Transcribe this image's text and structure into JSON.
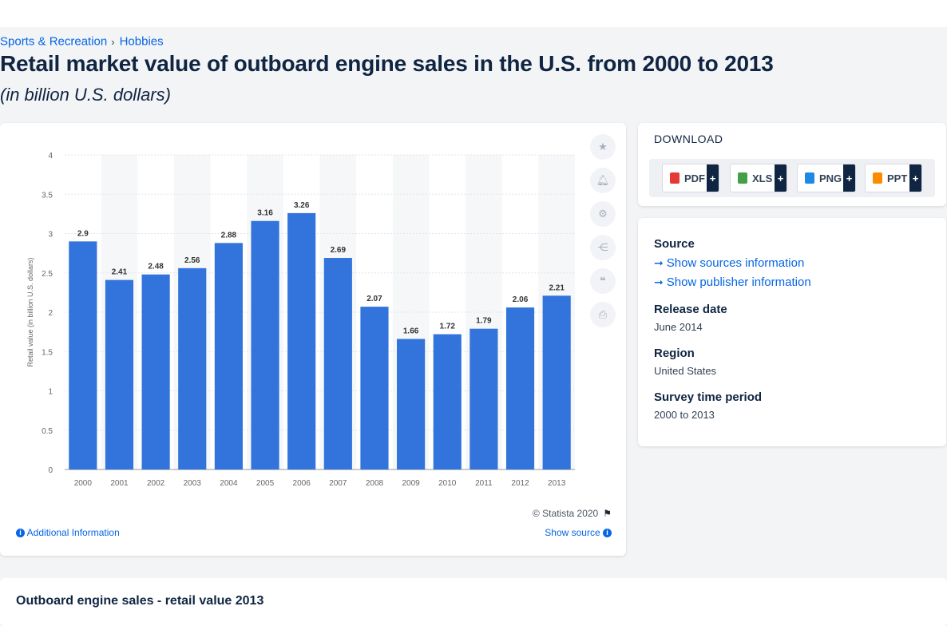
{
  "breadcrumb": {
    "items": [
      {
        "label": "Sports & Recreation"
      },
      {
        "label": "Hobbies"
      }
    ],
    "separator": "›"
  },
  "page": {
    "title": "Retail market value of outboard engine sales in the U.S. from 2000 to 2013",
    "subtitle": "(in billion U.S. dollars)"
  },
  "chart_data": {
    "type": "bar",
    "categories": [
      "2000",
      "2001",
      "2002",
      "2003",
      "2004",
      "2005",
      "2006",
      "2007",
      "2008",
      "2009",
      "2010",
      "2011",
      "2012",
      "2013"
    ],
    "values": [
      2.9,
      2.41,
      2.48,
      2.56,
      2.88,
      3.16,
      3.26,
      2.69,
      2.07,
      1.66,
      1.72,
      1.79,
      2.06,
      2.21
    ],
    "data_labels": [
      "2.9",
      "2.41",
      "2.48",
      "2.56",
      "2.88",
      "3.16",
      "3.26",
      "2.69",
      "2.07",
      "1.66",
      "1.72",
      "1.79",
      "2.06",
      "2.21"
    ],
    "ylabel": "Retail value (in billion U.S. dollars)",
    "xlabel": "",
    "ylim": [
      0,
      4
    ],
    "yticks": [
      0,
      0.5,
      1,
      1.5,
      2,
      2.5,
      3,
      3.5,
      4
    ],
    "ytick_labels": [
      "0",
      "0.5",
      "1",
      "1.5",
      "2",
      "2.5",
      "3",
      "3.5",
      "4"
    ],
    "grid": true,
    "bar_color": "#3273dc",
    "band_color": "#f6f7f8"
  },
  "chart_footer": {
    "copyright": "© Statista 2020",
    "additional_info": "Additional Information",
    "show_source": "Show source"
  },
  "toolbar": {
    "icons": [
      "star-icon",
      "bell-icon",
      "gear-icon",
      "share-icon",
      "quote-icon",
      "print-icon"
    ]
  },
  "download": {
    "title": "DOWNLOAD",
    "buttons": [
      {
        "label": "PDF",
        "color": "#e53935"
      },
      {
        "label": "XLS",
        "color": "#43a047"
      },
      {
        "label": "PNG",
        "color": "#1e88e5"
      },
      {
        "label": "PPT",
        "color": "#fb8c00"
      }
    ],
    "plus": "+"
  },
  "info": {
    "source_label": "Source",
    "show_sources": "Show sources information",
    "show_publisher": "Show publisher information",
    "release_label": "Release date",
    "release_value": "June 2014",
    "region_label": "Region",
    "region_value": "United States",
    "period_label": "Survey time period",
    "period_value": "2000 to 2013"
  },
  "bottom": {
    "title": "Outboard engine sales - retail value 2013"
  },
  "colors": {
    "accent": "#0666e5",
    "heading": "#0f2542"
  }
}
